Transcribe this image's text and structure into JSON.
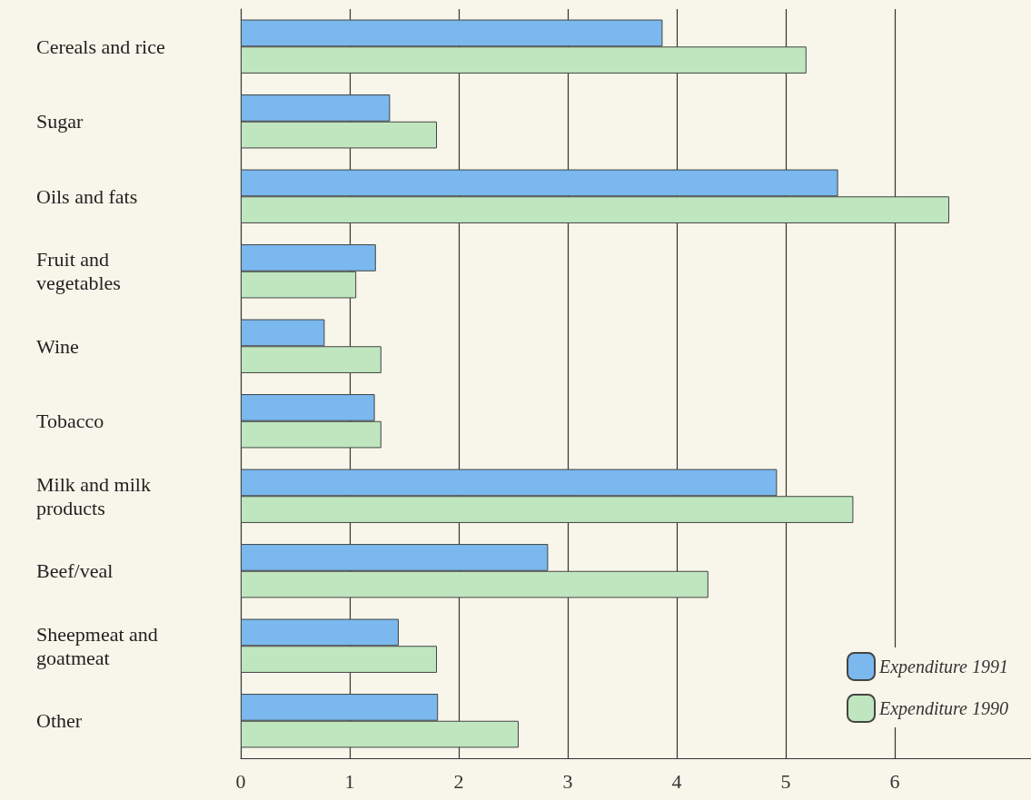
{
  "chart_data": {
    "type": "bar",
    "orientation": "horizontal",
    "categories": [
      "Cereals and rice",
      "Sugar",
      "Oils and fats",
      "Fruit and vegetables",
      "Wine",
      "Tobacco",
      "Milk and milk products",
      "Beef/veal",
      "Sheepmeat and goatmeat",
      "Other"
    ],
    "series": [
      {
        "name": "Expenditure 1991",
        "color": "#7ab8ee",
        "values": [
          3.87,
          1.37,
          5.48,
          1.24,
          0.77,
          1.23,
          4.92,
          2.82,
          1.45,
          1.81
        ]
      },
      {
        "name": "Expenditure 1990",
        "color": "#bfe6bf",
        "values": [
          5.19,
          1.8,
          6.5,
          1.06,
          1.29,
          1.29,
          5.62,
          4.29,
          1.8,
          2.55
        ]
      }
    ],
    "xlim": [
      0,
      7.25
    ],
    "xticks": [
      0,
      1,
      2,
      3,
      4,
      5,
      6
    ],
    "grid": "x",
    "legend": "bottom right"
  }
}
